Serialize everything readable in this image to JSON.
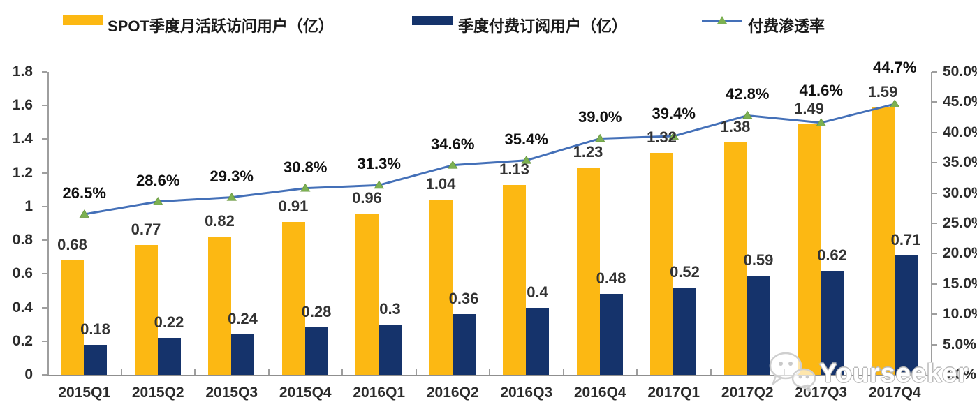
{
  "legend": [
    {
      "label": "SPOT季度月活跃访问用户（亿）",
      "swatch": "yellow-bar-swatch",
      "color": "#FCB813"
    },
    {
      "label": "季度付费订阅用户（亿）",
      "swatch": "navy-bar-swatch",
      "color": "#15336B"
    },
    {
      "label": "付费渗透率",
      "swatch": "line-with-triangle-marker",
      "color": "#4470B8",
      "marker_color": "#7CB152"
    }
  ],
  "watermark": {
    "text": "Yourseeker",
    "icon": "wechat-icon"
  },
  "chart_data": {
    "type": "bar",
    "subtype": "grouped bars + line on secondary axis",
    "title": "",
    "categories": [
      "2015Q1",
      "2015Q2",
      "2015Q3",
      "2015Q4",
      "2016Q1",
      "2016Q2",
      "2016Q3",
      "2016Q4",
      "2017Q1",
      "2017Q2",
      "2017Q3",
      "2017Q4"
    ],
    "series": [
      {
        "name": "SPOT季度月活跃访问用户（亿）",
        "type": "bar",
        "axis": "left",
        "color": "#FCB813",
        "values": [
          0.68,
          0.77,
          0.82,
          0.91,
          0.96,
          1.04,
          1.13,
          1.23,
          1.32,
          1.38,
          1.49,
          1.59
        ],
        "labels": [
          "0.68",
          "0.77",
          "0.82",
          "0.91",
          "0.96",
          "1.04",
          "1.13",
          "1.23",
          "1.32",
          "1.38",
          "1.49",
          "1.59"
        ]
      },
      {
        "name": "季度付费订阅用户（亿）",
        "type": "bar",
        "axis": "left",
        "color": "#15336B",
        "values": [
          0.18,
          0.22,
          0.24,
          0.28,
          0.3,
          0.36,
          0.4,
          0.48,
          0.52,
          0.59,
          0.62,
          0.71
        ],
        "labels": [
          "0.18",
          "0.22",
          "0.24",
          "0.28",
          "0.3",
          "0.36",
          "0.4",
          "0.48",
          "0.52",
          "0.59",
          "0.62",
          "0.71"
        ]
      },
      {
        "name": "付费渗透率",
        "type": "line",
        "axis": "right",
        "color": "#4470B8",
        "marker": "triangle",
        "marker_color": "#7CB152",
        "values": [
          26.5,
          28.6,
          29.3,
          30.8,
          31.3,
          34.6,
          35.4,
          39.0,
          39.4,
          42.8,
          41.6,
          44.7
        ],
        "labels": [
          "26.5%",
          "28.6%",
          "29.3%",
          "30.8%",
          "31.3%",
          "34.6%",
          "35.4%",
          "39.0%",
          "39.4%",
          "42.8%",
          "41.6%",
          "44.7%"
        ]
      }
    ],
    "left_axis": {
      "min": 0,
      "max": 1.8,
      "step": 0.2,
      "tick_labels": [
        "0",
        "0.2",
        "0.4",
        "0.6",
        "0.8",
        "1",
        "1.2",
        "1.4",
        "1.6",
        "1.8"
      ]
    },
    "right_axis": {
      "min": 0,
      "max": 50,
      "step": 5,
      "tick_labels": [
        "0.0%",
        "5.0%",
        "10.0%",
        "15.0%",
        "20.0%",
        "25.0%",
        "30.0%",
        "35.0%",
        "40.0%",
        "45.0%",
        "50.0%"
      ]
    },
    "grid": false,
    "legend_position": "top"
  }
}
